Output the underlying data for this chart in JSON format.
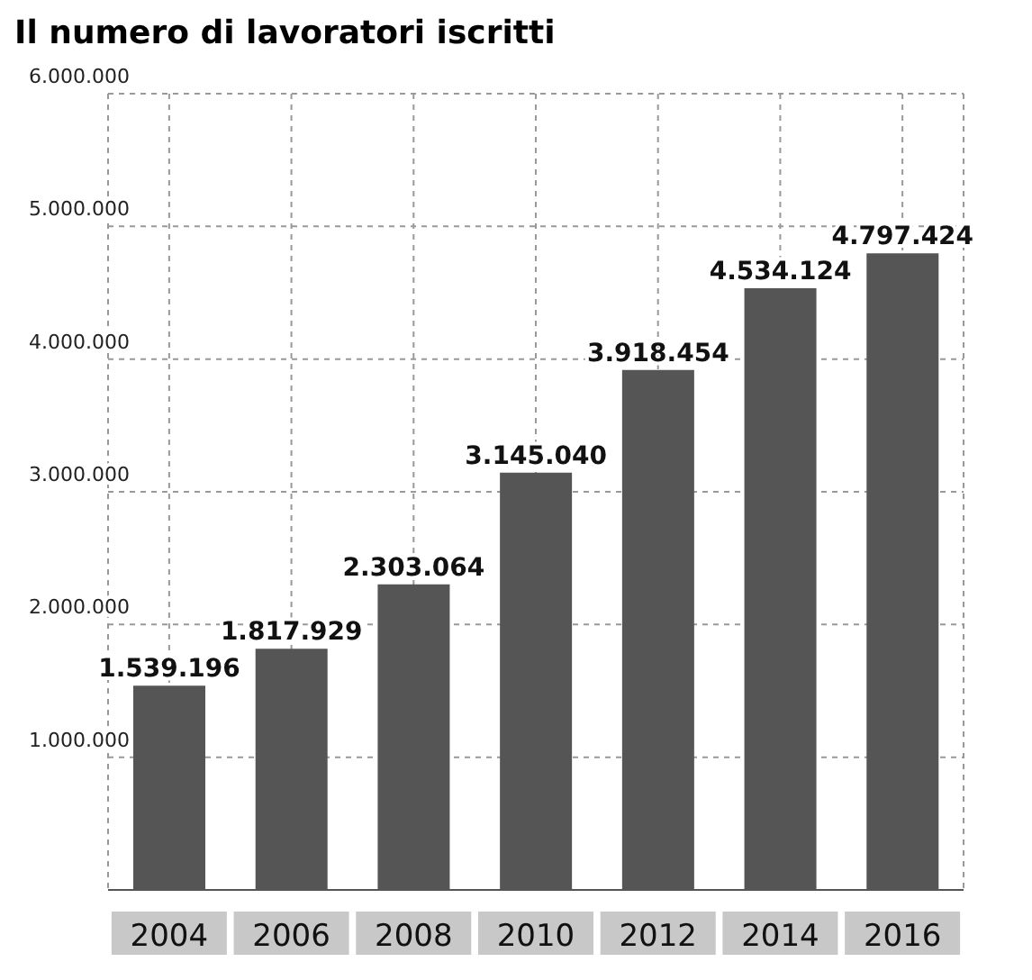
{
  "chart_data": {
    "type": "bar",
    "title": "Il numero di lavoratori iscritti",
    "categories": [
      "2004",
      "2006",
      "2008",
      "2010",
      "2012",
      "2014",
      "2016"
    ],
    "values": [
      1539196,
      1817929,
      2303064,
      3145040,
      3918454,
      4534124,
      4797424
    ],
    "value_labels": [
      "1.539.196",
      "1.817.929",
      "2.303.064",
      "3.145.040",
      "3.918.454",
      "4.534.124",
      "4.797.424"
    ],
    "color": "#555555",
    "ylim": [
      0,
      6000000
    ],
    "yticks": [
      {
        "value": 1000000,
        "label": "1.000.000"
      },
      {
        "value": 2000000,
        "label": "2.000.000"
      },
      {
        "value": 3000000,
        "label": "3.000.000"
      },
      {
        "value": 4000000,
        "label": "4.000.000"
      },
      {
        "value": 5000000,
        "label": "5.000.000"
      },
      {
        "value": 6000000,
        "label": "6.000.000"
      }
    ],
    "grid": true
  }
}
